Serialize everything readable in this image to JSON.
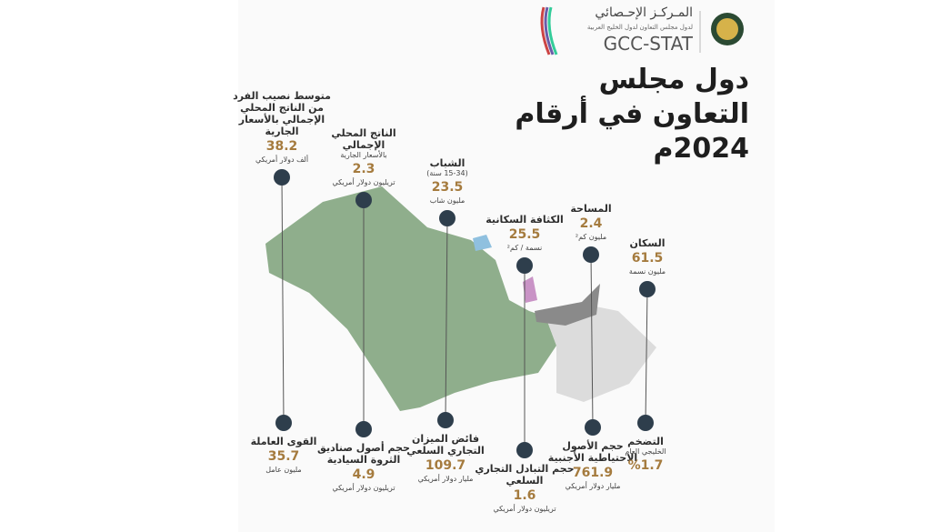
{
  "header": {
    "center_name": "المـركـز الإحـصائي",
    "center_subtitle": "لدول مجلس التعاون لدول الخليج العربية",
    "brand": "GCC-STAT"
  },
  "title": {
    "line1": "دول مجلس",
    "line2": "التعاون في أرقام",
    "line3": "2024م"
  },
  "indicators": [
    {
      "label": "متوسط نصيب الفرد من الناتج المحلي الإجمالي بالأسعار الجارية",
      "value": "38.2",
      "unit": "ألف دولار أمريكي"
    },
    {
      "label": "الناتج المحلي الإجمالي",
      "note": "بالأسعار الجارية",
      "value": "2.3",
      "unit": "تريليون دولار أمريكي"
    },
    {
      "label": "الشباب",
      "note": "(15-34 سنة)",
      "value": "23.5",
      "unit": "مليون شاب"
    },
    {
      "label": "الكثافة السكانية",
      "value": "25.5",
      "unit": "نسمة / كم²"
    },
    {
      "label": "المساحة",
      "value": "2.4",
      "unit": "مليون كم²"
    },
    {
      "label": "السكان",
      "value": "61.5",
      "unit": "مليون نسمة"
    },
    {
      "label": "القوى العاملة",
      "value": "35.7",
      "unit": "مليون عامل"
    },
    {
      "label": "حجم أصول صناديق الثروة السيادية",
      "value": "4.9",
      "unit": "تريليون دولار أمريكي"
    },
    {
      "label": "فائض الميزان التجاري السلعي",
      "value": "109.7",
      "unit": "مليار دولار أمريكي"
    },
    {
      "label": "حجم التبادل التجاري السلعي",
      "value": "1.6",
      "unit": "تريليون دولار أمريكي"
    },
    {
      "label": "حجم الأصول الاحتياطية الأجنبية",
      "value": "761.9",
      "unit": "مليار دولار أمريكي"
    },
    {
      "label": "التضخم",
      "note": "الخليجي العام",
      "value": "%1.7"
    }
  ]
}
